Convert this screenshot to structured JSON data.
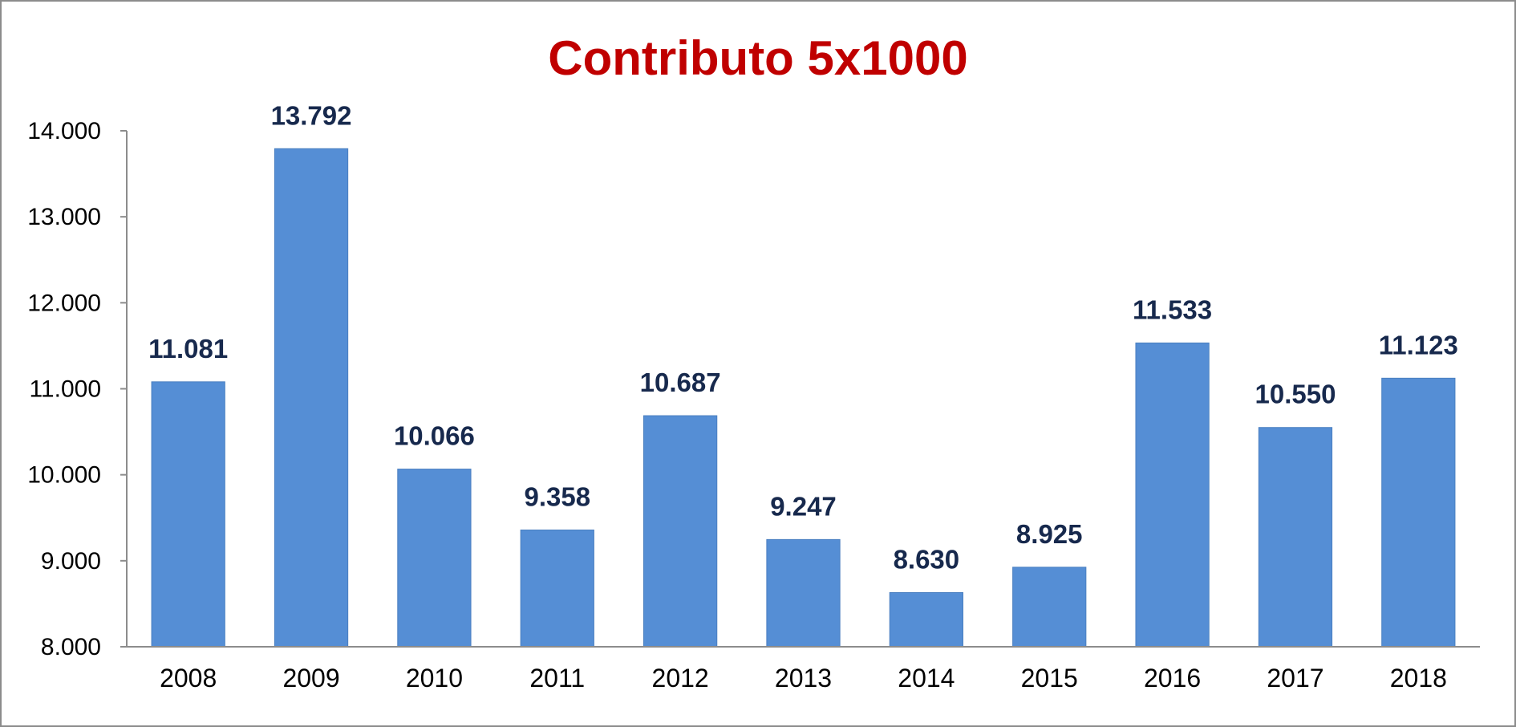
{
  "chart_data": {
    "type": "bar",
    "title": "Contributo 5x1000",
    "xlabel": "",
    "ylabel": "",
    "categories": [
      "2008",
      "2009",
      "2010",
      "2011",
      "2012",
      "2013",
      "2014",
      "2015",
      "2016",
      "2017",
      "2018"
    ],
    "values": [
      11081,
      13792,
      10066,
      9358,
      10687,
      9247,
      8630,
      8925,
      11533,
      10550,
      11123
    ],
    "data_labels": [
      "11.081",
      "13.792",
      "10.066",
      "9.358",
      "10.687",
      "9.247",
      "8.630",
      "8.925",
      "11.533",
      "10.550",
      "11.123"
    ],
    "ylim": [
      8000,
      14000
    ],
    "yticks": [
      8000,
      9000,
      10000,
      11000,
      12000,
      13000,
      14000
    ],
    "ytick_labels": [
      "8.000",
      "9.000",
      "10.000",
      "11.000",
      "12.000",
      "13.000",
      "14.000"
    ],
    "grid": false,
    "legend": "none",
    "colors": {
      "bar": "#558ed5",
      "title": "#c00000",
      "data_label": "#17294d",
      "axis": "#8c8c8c"
    }
  }
}
